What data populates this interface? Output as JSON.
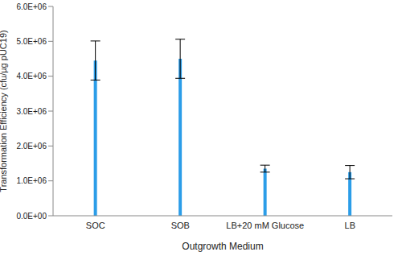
{
  "chart_data": {
    "type": "bar",
    "x_label": "Outgrowth Medium",
    "y_label": "Transformation Efficiency (cfu/µg pUC19)",
    "categories": [
      "SOC",
      "SOB",
      "LB+20 mM Glucose",
      "LB"
    ],
    "values": [
      4450000,
      4500000,
      1350000,
      1250000
    ],
    "errors": [
      560000,
      560000,
      100000,
      190000
    ],
    "color": "#2b9de8",
    "ylim": [
      0,
      6000000
    ],
    "yticks": [
      {
        "value": 0,
        "label": "0.0E+00"
      },
      {
        "value": 1000000,
        "label": "1.0E+06"
      },
      {
        "value": 2000000,
        "label": "2.0E+06"
      },
      {
        "value": 3000000,
        "label": "3.0E+06"
      },
      {
        "value": 4000000,
        "label": "4.0E+06"
      },
      {
        "value": 5000000,
        "label": "5.0E+06"
      },
      {
        "value": 6000000,
        "label": "6.0E+06"
      }
    ],
    "grid": false
  }
}
